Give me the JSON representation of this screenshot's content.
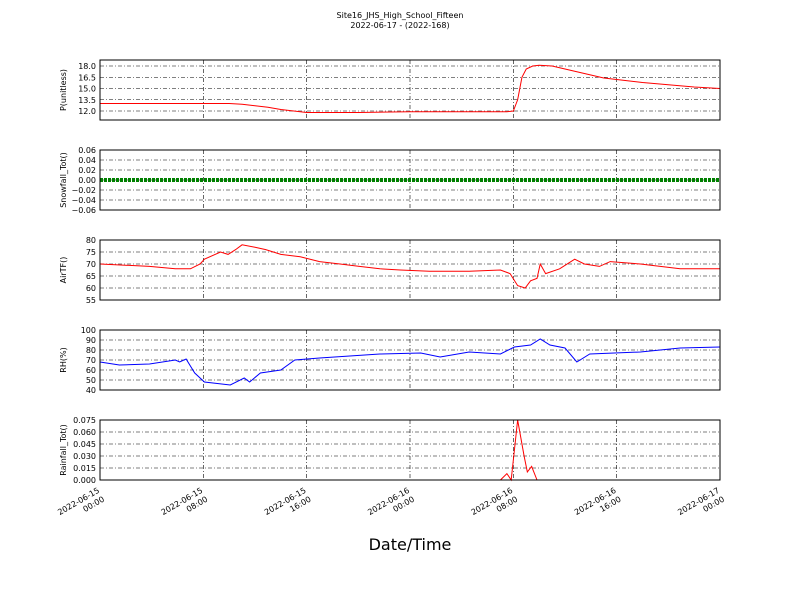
{
  "title": "Site16_JHS_High_School_Fifteen",
  "subtitle": "2022-06-17 - (2022-168)",
  "x_axis": {
    "label": "Date/Time",
    "lim": [
      "2022-06-15 00:00",
      "2022-06-17 00:00"
    ],
    "ticks": [
      "2022-06-15 00:00",
      "2022-06-15 08:00",
      "2022-06-15 16:00",
      "2022-06-16 00:00",
      "2022-06-16 08:00",
      "2022-06-16 16:00",
      "2022-06-17 00:00"
    ]
  },
  "chart_data": [
    {
      "type": "line",
      "y_label": "P(unitless)",
      "color": "#ff0000",
      "grid": true,
      "ylim": [
        10.8,
        18.8
      ],
      "yticks": [
        {
          "value": 12,
          "label": "12.0"
        },
        {
          "value": 13.5,
          "label": "13.5"
        },
        {
          "value": 15,
          "label": "15.0"
        },
        {
          "value": 16.5,
          "label": "16.5"
        },
        {
          "value": 18,
          "label": "18.0"
        }
      ],
      "x": [
        "2022-06-15 00:00",
        "2022-06-15 10:00",
        "2022-06-15 11:00",
        "2022-06-15 12:00",
        "2022-06-15 13:00",
        "2022-06-15 14:00",
        "2022-06-15 15:00",
        "2022-06-15 16:00",
        "2022-06-15 20:00",
        "2022-06-16 00:00",
        "2022-06-16 07:30",
        "2022-06-16 08:00",
        "2022-06-16 08:20",
        "2022-06-16 08:40",
        "2022-06-16 09:00",
        "2022-06-16 09:30",
        "2022-06-16 10:00",
        "2022-06-16 11:00",
        "2022-06-16 12:00",
        "2022-06-16 13:00",
        "2022-06-16 14:00",
        "2022-06-16 15:00",
        "2022-06-16 16:00",
        "2022-06-16 18:00",
        "2022-06-16 20:00",
        "2022-06-16 22:00",
        "2022-06-17 00:00"
      ],
      "values": [
        13.0,
        13.0,
        12.9,
        12.7,
        12.5,
        12.2,
        12.0,
        11.8,
        11.8,
        11.9,
        11.9,
        12.0,
        13.5,
        16.5,
        17.6,
        18.0,
        18.1,
        18.0,
        17.6,
        17.2,
        16.8,
        16.4,
        16.2,
        15.8,
        15.5,
        15.2,
        15.0
      ]
    },
    {
      "type": "line",
      "y_label": "Snowfall_Tot()",
      "color": "#008000",
      "grid": true,
      "style": "dotted",
      "ylim": [
        -0.06,
        0.06
      ],
      "yticks": [
        {
          "value": -0.06,
          "label": "−0.06"
        },
        {
          "value": -0.04,
          "label": "−0.04"
        },
        {
          "value": -0.02,
          "label": "−0.02"
        },
        {
          "value": 0,
          "label": "0.00"
        },
        {
          "value": 0.02,
          "label": "0.02"
        },
        {
          "value": 0.04,
          "label": "0.04"
        },
        {
          "value": 0.06,
          "label": "0.06"
        }
      ],
      "x": [
        "2022-06-15 00:00",
        "2022-06-15 04:00",
        "2022-06-15 08:00",
        "2022-06-15 12:00",
        "2022-06-15 16:00",
        "2022-06-15 20:00",
        "2022-06-16 00:00",
        "2022-06-16 04:00",
        "2022-06-16 08:00",
        "2022-06-16 12:00",
        "2022-06-16 16:00",
        "2022-06-16 20:00",
        "2022-06-17 00:00"
      ],
      "values": [
        0,
        0,
        0,
        0,
        0,
        0,
        0,
        0,
        0,
        0,
        0,
        0,
        0
      ]
    },
    {
      "type": "line",
      "y_label": "AirTF()",
      "color": "#ff0000",
      "grid": true,
      "ylim": [
        55,
        80
      ],
      "yticks": [
        55,
        60,
        65,
        70,
        75,
        80
      ],
      "x": [
        "2022-06-15 00:00",
        "2022-06-15 03:50",
        "2022-06-15 05:50",
        "2022-06-15 07:00",
        "2022-06-15 07:45",
        "2022-06-15 08:05",
        "2022-06-15 09:20",
        "2022-06-15 09:55",
        "2022-06-15 10:30",
        "2022-06-15 11:00",
        "2022-06-15 12:00",
        "2022-06-15 12:50",
        "2022-06-15 14:00",
        "2022-06-15 15:30",
        "2022-06-15 17:00",
        "2022-06-15 18:35",
        "2022-06-15 20:05",
        "2022-06-15 21:40",
        "2022-06-15 23:15",
        "2022-06-16 01:30",
        "2022-06-16 04:35",
        "2022-06-16 07:00",
        "2022-06-16 07:45",
        "2022-06-16 08:20",
        "2022-06-16 08:55",
        "2022-06-16 09:20",
        "2022-06-16 09:50",
        "2022-06-16 10:05",
        "2022-06-16 10:30",
        "2022-06-16 11:35",
        "2022-06-16 12:45",
        "2022-06-16 13:30",
        "2022-06-16 14:40",
        "2022-06-16 15:30",
        "2022-06-16 17:50",
        "2022-06-16 20:55",
        "2022-06-17 00:00"
      ],
      "values": [
        70,
        69,
        68,
        68,
        70,
        72,
        75,
        74,
        76,
        78,
        77,
        76,
        74,
        73,
        71,
        70,
        69,
        68,
        67.5,
        67,
        67,
        67.5,
        66,
        61,
        60,
        63,
        64,
        70,
        66,
        68,
        72,
        70,
        69,
        71,
        70,
        68,
        68
      ]
    },
    {
      "type": "line",
      "y_label": "RH(%)",
      "color": "#0000ff",
      "grid": true,
      "ylim": [
        40,
        100
      ],
      "yticks": [
        40,
        50,
        60,
        70,
        80,
        90,
        100
      ],
      "x": [
        "2022-06-15 00:00",
        "2022-06-15 01:30",
        "2022-06-15 03:50",
        "2022-06-15 05:50",
        "2022-06-15 06:10",
        "2022-06-15 06:40",
        "2022-06-15 07:20",
        "2022-06-15 08:05",
        "2022-06-15 10:05",
        "2022-06-15 11:10",
        "2022-06-15 11:35",
        "2022-06-15 12:25",
        "2022-06-15 14:00",
        "2022-06-15 15:05",
        "2022-06-15 17:00",
        "2022-06-15 19:20",
        "2022-06-15 21:40",
        "2022-06-16 00:50",
        "2022-06-16 02:20",
        "2022-06-16 04:35",
        "2022-06-16 07:00",
        "2022-06-16 08:05",
        "2022-06-16 09:20",
        "2022-06-16 10:05",
        "2022-06-16 10:50",
        "2022-06-16 12:00",
        "2022-06-16 12:55",
        "2022-06-16 13:55",
        "2022-06-16 17:50",
        "2022-06-16 20:55",
        "2022-06-17 00:00"
      ],
      "values": [
        68,
        65,
        66,
        70,
        68,
        71,
        57,
        48,
        45,
        52,
        48,
        57,
        60,
        70,
        72,
        74,
        76,
        77,
        73,
        78,
        76,
        83,
        85,
        91,
        85,
        82,
        68,
        76,
        78,
        82,
        83
      ]
    },
    {
      "type": "line",
      "y_label": "Rainfall_Tot()",
      "color": "#ff0000",
      "grid": true,
      "ylim": [
        0,
        0.075
      ],
      "yticks": [
        {
          "value": 0,
          "label": "0.000"
        },
        {
          "value": 0.015,
          "label": "0.015"
        },
        {
          "value": 0.03,
          "label": "0.030"
        },
        {
          "value": 0.045,
          "label": "0.045"
        },
        {
          "value": 0.06,
          "label": "0.060"
        },
        {
          "value": 0.075,
          "label": "0.075"
        }
      ],
      "x": [
        "2022-06-15 00:00",
        "2022-06-16 07:00",
        "2022-06-16 07:30",
        "2022-06-16 07:50",
        "2022-06-16 08:20",
        "2022-06-16 08:50",
        "2022-06-16 09:05",
        "2022-06-16 09:25",
        "2022-06-16 09:50"
      ],
      "values": [
        0,
        0,
        0.008,
        0,
        0.075,
        0.03,
        0.01,
        0.017,
        0
      ]
    }
  ]
}
